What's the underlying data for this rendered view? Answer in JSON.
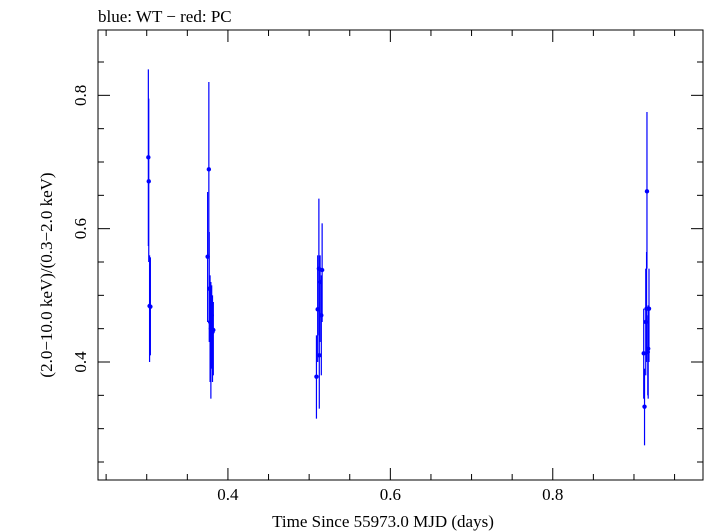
{
  "chart_data": {
    "type": "scatter",
    "title": "blue: WT − red: PC",
    "xlabel": "Time Since 55973.0 MJD (days)",
    "ylabel": "(2.0−10.0 keV)/(0.3−2.0 keV)",
    "xlim": [
      0.24,
      0.985
    ],
    "ylim": [
      0.223,
      0.898
    ],
    "x_ticks": [
      0.4,
      0.6,
      0.8
    ],
    "x_tick_labels": [
      "0.4",
      "0.6",
      "0.8"
    ],
    "y_ticks": [
      0.4,
      0.6,
      0.8
    ],
    "y_tick_labels": [
      "0.4",
      "0.6",
      "0.8"
    ],
    "x_minor_step": 0.05,
    "y_minor_step": 0.05,
    "grid": false,
    "series": [
      {
        "name": "WT",
        "color": "#0000ff",
        "points": [
          {
            "x": 0.302,
            "y": 0.707,
            "err": [
              0.574,
              0.839
            ]
          },
          {
            "x": 0.3025,
            "y": 0.671,
            "err": [
              0.55,
              0.795
            ]
          },
          {
            "x": 0.3035,
            "y": 0.484,
            "err": [
              0.4,
              0.56
            ]
          },
          {
            "x": 0.3045,
            "y": 0.483,
            "err": [
              0.41,
              0.557
            ]
          },
          {
            "x": 0.375,
            "y": 0.558,
            "err": [
              0.46,
              0.655
            ]
          },
          {
            "x": 0.3765,
            "y": 0.689,
            "err": [
              0.56,
              0.82
            ]
          },
          {
            "x": 0.377,
            "y": 0.51,
            "err": [
              0.43,
              0.595
            ]
          },
          {
            "x": 0.378,
            "y": 0.46,
            "err": [
              0.37,
              0.53
            ]
          },
          {
            "x": 0.379,
            "y": 0.45,
            "err": [
              0.345,
              0.52
            ]
          },
          {
            "x": 0.38,
            "y": 0.47,
            "err": [
              0.39,
              0.515
            ]
          },
          {
            "x": 0.381,
            "y": 0.445,
            "err": [
              0.37,
              0.5
            ]
          },
          {
            "x": 0.382,
            "y": 0.448,
            "err": [
              0.38,
              0.49
            ]
          },
          {
            "x": 0.509,
            "y": 0.378,
            "err": [
              0.315,
              0.44
            ]
          },
          {
            "x": 0.5105,
            "y": 0.479,
            "err": [
              0.4,
              0.56
            ]
          },
          {
            "x": 0.512,
            "y": 0.54,
            "err": [
              0.44,
              0.645
            ]
          },
          {
            "x": 0.5125,
            "y": 0.41,
            "err": [
              0.33,
              0.49
            ]
          },
          {
            "x": 0.5135,
            "y": 0.52,
            "err": [
              0.43,
              0.56
            ]
          },
          {
            "x": 0.515,
            "y": 0.47,
            "err": [
              0.38,
              0.53
            ]
          },
          {
            "x": 0.516,
            "y": 0.538,
            "err": [
              0.46,
              0.608
            ]
          },
          {
            "x": 0.912,
            "y": 0.413,
            "err": [
              0.345,
              0.48
            ]
          },
          {
            "x": 0.913,
            "y": 0.333,
            "err": [
              0.275,
              0.39
            ]
          },
          {
            "x": 0.9145,
            "y": 0.46,
            "err": [
              0.38,
              0.54
            ]
          },
          {
            "x": 0.9155,
            "y": 0.48,
            "err": [
              0.4,
              0.565
            ]
          },
          {
            "x": 0.916,
            "y": 0.656,
            "err": [
              0.54,
              0.775
            ]
          },
          {
            "x": 0.917,
            "y": 0.415,
            "err": [
              0.35,
              0.47
            ]
          },
          {
            "x": 0.9175,
            "y": 0.42,
            "err": [
              0.345,
              0.485
            ]
          },
          {
            "x": 0.9185,
            "y": 0.48,
            "err": [
              0.4,
              0.54
            ]
          }
        ]
      }
    ]
  }
}
